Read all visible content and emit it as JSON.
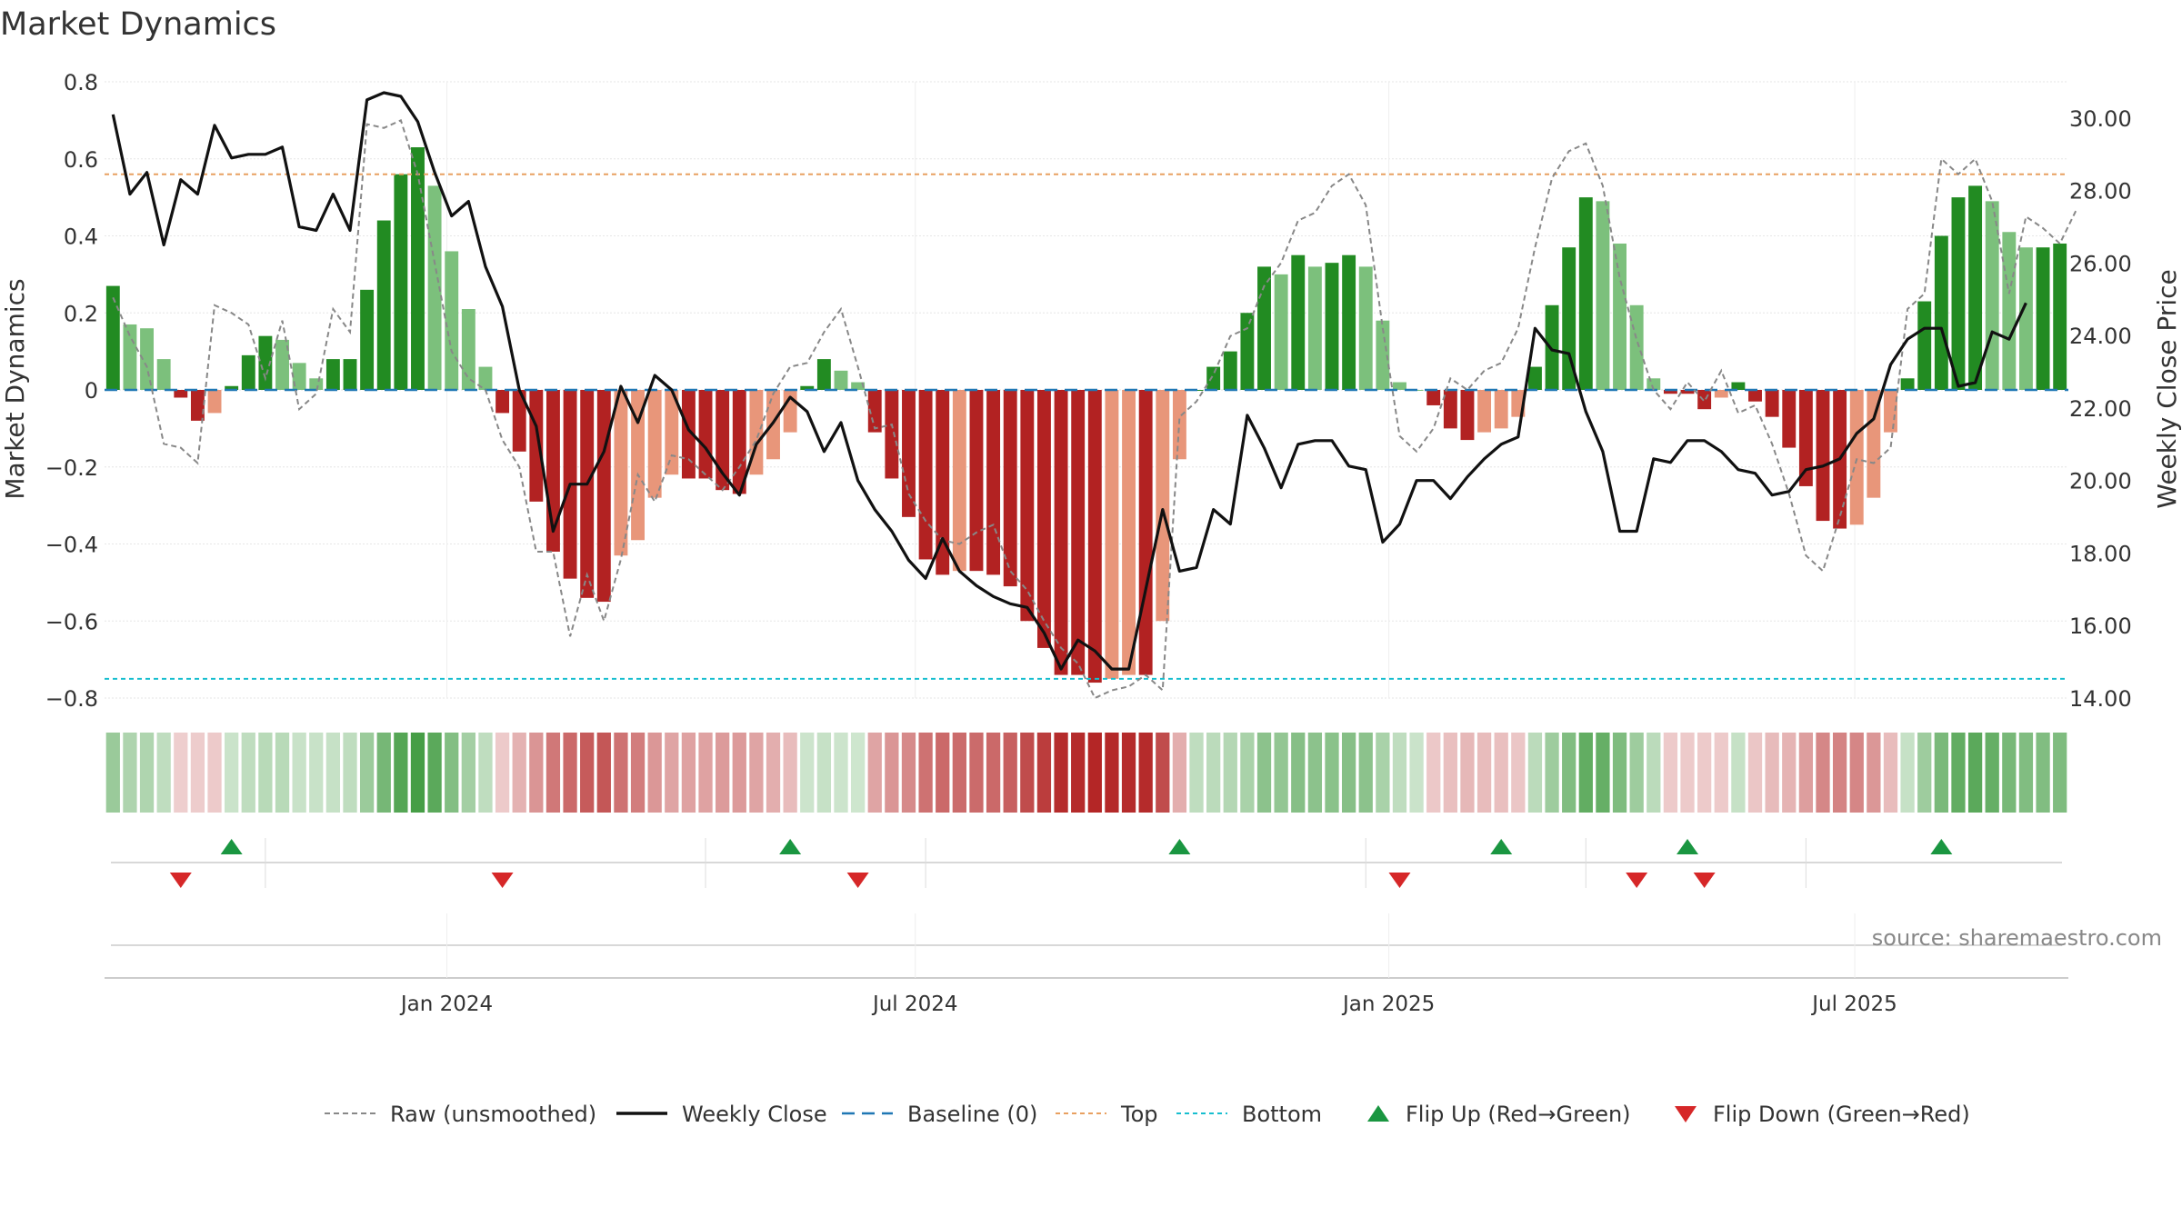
{
  "chart_data": {
    "type": "bar",
    "title": "Market Dynamics",
    "ylabel_left": "Market Dynamics",
    "ylabel_right": "Weekly Close Price",
    "ylim_left": [
      -0.8,
      0.8
    ],
    "ylim_right": [
      14.0,
      31.0
    ],
    "yticks_left": [
      "0.8",
      "0.6",
      "0.4",
      "0.2",
      "0",
      "−0.2",
      "−0.4",
      "−0.6",
      "−0.8"
    ],
    "yticks_right": [
      "30.00",
      "28.00",
      "26.00",
      "24.00",
      "22.00",
      "20.00",
      "18.00",
      "16.00",
      "14.00"
    ],
    "x_start": "2023-08-21",
    "x_end": "2025-09-22",
    "x_ticks": [
      {
        "label": "Jan 2024",
        "date": "2024-01-01"
      },
      {
        "label": "Jul 2024",
        "date": "2024-07-01"
      },
      {
        "label": "Jan 2025",
        "date": "2025-01-01"
      },
      {
        "label": "Jul 2025",
        "date": "2025-07-01"
      }
    ],
    "top_level": 0.56,
    "bottom_level": -0.75,
    "baseline": 0,
    "grid": true,
    "legend_position": "bottom-center",
    "source": "source: sharemaestro.com",
    "colors": {
      "strong_green": "#228b22",
      "light_green": "#7cc07c",
      "strong_red": "#b22222",
      "light_red": "#e8967a",
      "weekly_close": "#111111",
      "raw": "#888888",
      "baseline": "#1f77b4",
      "top": "#e8a060",
      "bottom": "#17becf",
      "flip_up": "#1a9641",
      "flip_down": "#d62728"
    },
    "dynamics": [
      0.27,
      0.17,
      0.16,
      0.08,
      -0.02,
      -0.08,
      -0.06,
      0.01,
      0.09,
      0.14,
      0.13,
      0.07,
      0.03,
      0.08,
      0.08,
      0.26,
      0.44,
      0.56,
      0.63,
      0.53,
      0.36,
      0.21,
      0.06,
      -0.06,
      -0.16,
      -0.29,
      -0.42,
      -0.49,
      -0.54,
      -0.55,
      -0.43,
      -0.39,
      -0.28,
      -0.22,
      -0.23,
      -0.23,
      -0.26,
      -0.27,
      -0.22,
      -0.18,
      -0.11,
      0.01,
      0.08,
      0.05,
      0.02,
      -0.11,
      -0.23,
      -0.33,
      -0.44,
      -0.48,
      -0.47,
      -0.47,
      -0.48,
      -0.51,
      -0.6,
      -0.67,
      -0.74,
      -0.74,
      -0.76,
      -0.75,
      -0.74,
      -0.74,
      -0.6,
      -0.18,
      0.0,
      0.06,
      0.1,
      0.2,
      0.32,
      0.3,
      0.35,
      0.32,
      0.33,
      0.35,
      0.32,
      0.18,
      0.02,
      0.0,
      -0.04,
      -0.1,
      -0.13,
      -0.11,
      -0.1,
      -0.07,
      0.06,
      0.22,
      0.37,
      0.5,
      0.49,
      0.38,
      0.22,
      0.03,
      -0.01,
      -0.01,
      -0.05,
      -0.02,
      0.02,
      -0.03,
      -0.07,
      -0.15,
      -0.25,
      -0.34,
      -0.36,
      -0.35,
      -0.28,
      -0.11,
      0.03,
      0.23,
      0.4,
      0.5,
      0.53,
      0.49,
      0.41,
      0.37,
      0.37,
      0.38
    ],
    "raw": [
      0.24,
      0.14,
      0.06,
      -0.14,
      -0.15,
      -0.19,
      0.22,
      0.2,
      0.17,
      0.03,
      0.18,
      -0.05,
      -0.01,
      0.21,
      0.15,
      0.69,
      0.68,
      0.7,
      0.56,
      0.33,
      0.1,
      0.03,
      0.0,
      -0.13,
      -0.2,
      -0.42,
      -0.42,
      -0.64,
      -0.48,
      -0.6,
      -0.44,
      -0.22,
      -0.29,
      -0.17,
      -0.18,
      -0.22,
      -0.26,
      -0.2,
      -0.13,
      -0.01,
      0.06,
      0.07,
      0.15,
      0.21,
      0.06,
      -0.1,
      -0.09,
      -0.27,
      -0.34,
      -0.39,
      -0.4,
      -0.37,
      -0.35,
      -0.47,
      -0.52,
      -0.6,
      -0.67,
      -0.71,
      -0.8,
      -0.78,
      -0.77,
      -0.74,
      -0.78,
      -0.07,
      -0.03,
      0.04,
      0.14,
      0.16,
      0.27,
      0.33,
      0.44,
      0.46,
      0.53,
      0.56,
      0.48,
      0.16,
      -0.12,
      -0.16,
      -0.1,
      0.03,
      0.0,
      0.05,
      0.07,
      0.16,
      0.37,
      0.55,
      0.62,
      0.64,
      0.53,
      0.29,
      0.13,
      0.0,
      -0.05,
      0.02,
      -0.03,
      0.05,
      -0.06,
      -0.04,
      -0.14,
      -0.27,
      -0.43,
      -0.47,
      -0.33,
      -0.18,
      -0.19,
      -0.15,
      0.21,
      0.25,
      0.6,
      0.56,
      0.6,
      0.49,
      0.25,
      0.45,
      0.42,
      0.38,
      0.47
    ],
    "close": [
      30.1,
      27.9,
      28.5,
      26.5,
      28.3,
      27.9,
      29.8,
      28.9,
      29.0,
      29.0,
      29.2,
      27.0,
      26.9,
      27.9,
      26.9,
      30.5,
      30.7,
      30.6,
      29.9,
      28.5,
      27.3,
      27.7,
      25.9,
      24.8,
      22.5,
      21.5,
      18.6,
      19.9,
      19.9,
      20.8,
      22.6,
      21.6,
      22.9,
      22.5,
      21.4,
      20.9,
      20.2,
      19.6,
      21.0,
      21.6,
      22.3,
      21.9,
      20.8,
      21.6,
      20.0,
      19.2,
      18.6,
      17.8,
      17.3,
      18.4,
      17.5,
      17.1,
      16.8,
      16.6,
      16.5,
      15.8,
      14.8,
      15.6,
      15.3,
      14.8,
      14.8,
      17.0,
      19.2,
      17.5,
      17.6,
      19.2,
      18.8,
      21.8,
      20.9,
      19.8,
      21.0,
      21.1,
      21.1,
      20.4,
      20.3,
      18.3,
      18.8,
      20.0,
      20.0,
      19.5,
      20.1,
      20.6,
      21.0,
      21.2,
      24.2,
      23.6,
      23.5,
      21.9,
      20.8,
      18.6,
      18.6,
      20.6,
      20.5,
      21.1,
      21.1,
      20.8,
      20.3,
      20.2,
      19.6,
      19.7,
      20.3,
      20.4,
      20.6,
      21.3,
      21.7,
      23.2,
      23.9,
      24.2,
      24.2,
      22.6,
      22.7,
      24.1,
      23.9,
      24.9
    ],
    "shading": [
      0.27,
      0.18,
      0.17,
      0.1,
      -0.04,
      -0.05,
      -0.06,
      0.06,
      0.1,
      0.13,
      0.13,
      0.07,
      0.07,
      0.08,
      0.1,
      0.26,
      0.42,
      0.56,
      0.63,
      0.53,
      0.36,
      0.22,
      0.1,
      -0.06,
      -0.16,
      -0.29,
      -0.41,
      -0.48,
      -0.53,
      -0.55,
      -0.43,
      -0.39,
      -0.28,
      -0.22,
      -0.23,
      -0.23,
      -0.26,
      -0.27,
      -0.22,
      -0.18,
      -0.11,
      0.05,
      0.08,
      0.05,
      0.04,
      -0.22,
      -0.29,
      -0.33,
      -0.44,
      -0.48,
      -0.47,
      -0.47,
      -0.48,
      -0.51,
      -0.6,
      -0.67,
      -0.74,
      -0.74,
      -0.76,
      -0.75,
      -0.74,
      -0.74,
      -0.6,
      -0.18,
      0.1,
      0.12,
      0.15,
      0.2,
      0.32,
      0.3,
      0.35,
      0.32,
      0.33,
      0.35,
      0.32,
      0.2,
      0.1,
      0.06,
      -0.07,
      -0.1,
      -0.13,
      -0.11,
      -0.1,
      -0.08,
      0.12,
      0.25,
      0.37,
      0.5,
      0.49,
      0.38,
      0.25,
      0.12,
      -0.06,
      -0.06,
      -0.06,
      -0.06,
      0.08,
      -0.08,
      -0.12,
      -0.15,
      -0.25,
      -0.34,
      -0.36,
      -0.35,
      -0.28,
      -0.11,
      0.08,
      0.25,
      0.4,
      0.5,
      0.53,
      0.49,
      0.41,
      0.37,
      0.37,
      0.38
    ],
    "flip_up_weeks": [
      7,
      40,
      63,
      82,
      93,
      108
    ],
    "flip_down_weeks": [
      4,
      23,
      44,
      76,
      90,
      94
    ],
    "separator_weeks": [
      9,
      35,
      48,
      74,
      87,
      100
    ],
    "legend": [
      {
        "key": "raw",
        "label": "Raw (unsmoothed)"
      },
      {
        "key": "close",
        "label": "Weekly Close"
      },
      {
        "key": "baseline",
        "label": "Baseline (0)"
      },
      {
        "key": "top",
        "label": "Top"
      },
      {
        "key": "bottom",
        "label": "Bottom"
      },
      {
        "key": "flip_up",
        "label": "Flip Up (Red→Green)"
      },
      {
        "key": "flip_down",
        "label": "Flip Down (Green→Red)"
      }
    ]
  }
}
